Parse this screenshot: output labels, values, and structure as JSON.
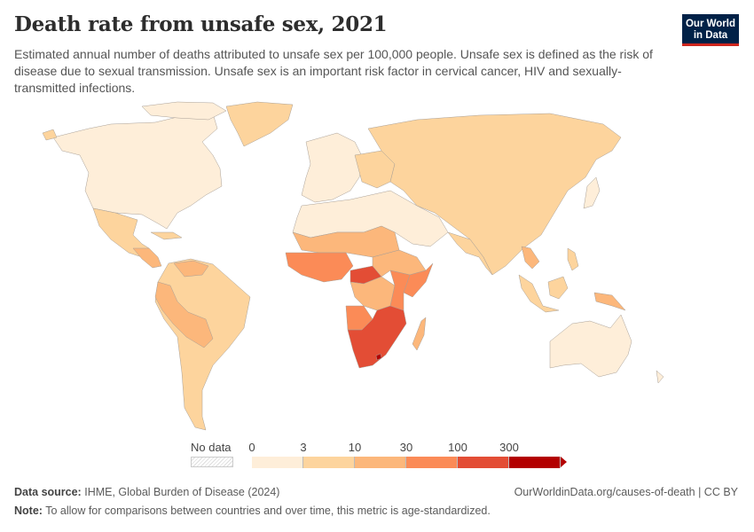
{
  "header": {
    "title": "Death rate from unsafe sex, 2021",
    "subtitle": "Estimated annual number of deaths attributed to unsafe sex per 100,000 people. Unsafe sex is defined as the risk of disease due to sexual transmission. Unsafe sex is an important risk factor in cervical cancer, HIV and sexually-transmitted infections.",
    "logo_line1": "Our World",
    "logo_line2": "in Data"
  },
  "legend": {
    "no_data_label": "No data",
    "ticks": [
      "0",
      "3",
      "10",
      "30",
      "100",
      "300"
    ],
    "bins": [
      {
        "from": 0,
        "to": 3,
        "color": "#feeed9"
      },
      {
        "from": 3,
        "to": 10,
        "color": "#fdd49d"
      },
      {
        "from": 10,
        "to": 30,
        "color": "#fcb77b"
      },
      {
        "from": 30,
        "to": 100,
        "color": "#fb8b57"
      },
      {
        "from": 100,
        "to": 300,
        "color": "#e34d35"
      },
      {
        "from": 300,
        "to": null,
        "color": "#b30000"
      }
    ]
  },
  "chart_data": {
    "type": "heatmap",
    "title": "Death rate from unsafe sex, 2021",
    "unit": "deaths per 100,000 people",
    "year": 2021,
    "scale": "binned",
    "bins": [
      0,
      3,
      10,
      30,
      100,
      300
    ],
    "regions": [
      {
        "name": "North America (USA, Canada)",
        "bin": "0-3"
      },
      {
        "name": "Greenland",
        "bin": "3-10"
      },
      {
        "name": "Mexico & Central America",
        "bin": "3-10"
      },
      {
        "name": "South America (most)",
        "bin": "3-10"
      },
      {
        "name": "Peru, Bolivia, Venezuela, Paraguay",
        "bin": "10-30"
      },
      {
        "name": "Western Europe",
        "bin": "0-3"
      },
      {
        "name": "Eastern Europe",
        "bin": "3-10"
      },
      {
        "name": "Russia & Central Asia",
        "bin": "3-10"
      },
      {
        "name": "China, India, South Asia",
        "bin": "3-10"
      },
      {
        "name": "Middle East & North Africa",
        "bin": "0-3"
      },
      {
        "name": "Thailand, Cambodia, Papua New Guinea",
        "bin": "10-30"
      },
      {
        "name": "Australia",
        "bin": "0-3"
      },
      {
        "name": "Sahel / West Africa",
        "bin": "30-100"
      },
      {
        "name": "DR Congo, Sudan, Ethiopia",
        "bin": "10-30"
      },
      {
        "name": "East Africa (Kenya, Tanzania, Somalia)",
        "bin": "30-100"
      },
      {
        "name": "Central African Republic",
        "bin": "100-300"
      },
      {
        "name": "Southern Africa (Namibia, Botswana, Zimbabwe, Mozambique, Zambia, Malawi, South Africa)",
        "bin": "100-300"
      },
      {
        "name": "Lesotho / Eswatini",
        "bin": "300+"
      },
      {
        "name": "Madagascar",
        "bin": "10-30"
      }
    ]
  },
  "footer": {
    "source_label": "Data source:",
    "source_text": "IHME, Global Burden of Disease (2024)",
    "note_label": "Note:",
    "note_text": "To allow for comparisons between countries and over time, this metric is age-standardized.",
    "link_text": "OurWorldinData.org/causes-of-death | CC BY"
  }
}
